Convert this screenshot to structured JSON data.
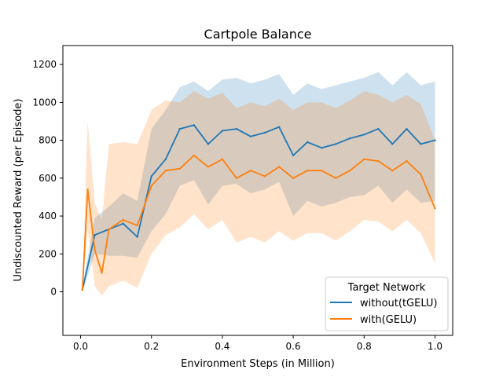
{
  "chart_data": {
    "type": "line",
    "title": "Cartpole Balance",
    "xlabel": "Environment Steps (in Million)",
    "ylabel": "Undiscounted Reward (per Episode)",
    "xlim": [
      -0.05,
      1.05
    ],
    "ylim": [
      -230,
      1300
    ],
    "xticks": [
      0.0,
      0.2,
      0.4,
      0.6,
      0.8,
      1.0
    ],
    "xtick_labels": [
      "0.0",
      "0.2",
      "0.4",
      "0.6",
      "0.8",
      "1.0"
    ],
    "yticks": [
      0,
      200,
      400,
      600,
      800,
      1000,
      1200
    ],
    "ytick_labels": [
      "0",
      "200",
      "400",
      "600",
      "800",
      "1000",
      "1200"
    ],
    "legend": {
      "title": "Target Network",
      "placement": "lower-right",
      "entries": [
        "without(tGELU)",
        "with(GELU)"
      ]
    },
    "series": [
      {
        "name": "without(tGELU)",
        "color": "#1f77b4",
        "x": [
          0.005,
          0.04,
          0.08,
          0.12,
          0.16,
          0.2,
          0.24,
          0.28,
          0.32,
          0.36,
          0.4,
          0.44,
          0.48,
          0.52,
          0.56,
          0.6,
          0.64,
          0.68,
          0.72,
          0.76,
          0.8,
          0.84,
          0.88,
          0.92,
          0.96,
          1.0
        ],
        "values": [
          10,
          300,
          330,
          360,
          290,
          610,
          700,
          860,
          880,
          780,
          850,
          860,
          820,
          840,
          870,
          720,
          790,
          760,
          780,
          810,
          830,
          860,
          780,
          860,
          780,
          800
        ],
        "band_low": [
          0,
          200,
          190,
          190,
          180,
          320,
          410,
          560,
          590,
          460,
          560,
          570,
          520,
          540,
          580,
          400,
          480,
          450,
          470,
          500,
          510,
          560,
          470,
          540,
          470,
          480
        ],
        "band_high": [
          25,
          390,
          450,
          520,
          480,
          860,
          960,
          1080,
          1110,
          1060,
          1120,
          1130,
          1100,
          1120,
          1150,
          1040,
          1100,
          1070,
          1090,
          1110,
          1130,
          1160,
          1090,
          1160,
          1090,
          1110
        ]
      },
      {
        "name": "with(GELU)",
        "color": "#ff7f0e",
        "x": [
          0.005,
          0.02,
          0.04,
          0.06,
          0.08,
          0.12,
          0.16,
          0.2,
          0.24,
          0.28,
          0.32,
          0.36,
          0.4,
          0.44,
          0.48,
          0.52,
          0.56,
          0.6,
          0.64,
          0.68,
          0.72,
          0.76,
          0.8,
          0.84,
          0.88,
          0.92,
          0.96,
          1.0
        ],
        "values": [
          10,
          540,
          220,
          100,
          330,
          380,
          350,
          560,
          640,
          650,
          720,
          660,
          700,
          600,
          640,
          610,
          660,
          600,
          640,
          640,
          600,
          640,
          700,
          690,
          640,
          690,
          620,
          440
        ],
        "band_low": [
          0,
          330,
          30,
          -20,
          30,
          60,
          20,
          200,
          300,
          340,
          410,
          330,
          380,
          260,
          290,
          260,
          320,
          270,
          310,
          310,
          270,
          320,
          380,
          370,
          320,
          380,
          310,
          150
        ],
        "band_high": [
          25,
          900,
          470,
          380,
          780,
          790,
          780,
          960,
          1010,
          1000,
          1060,
          1020,
          1050,
          970,
          1000,
          980,
          1020,
          960,
          1000,
          1000,
          970,
          1010,
          1060,
          1040,
          1000,
          1040,
          990,
          800
        ]
      }
    ]
  }
}
